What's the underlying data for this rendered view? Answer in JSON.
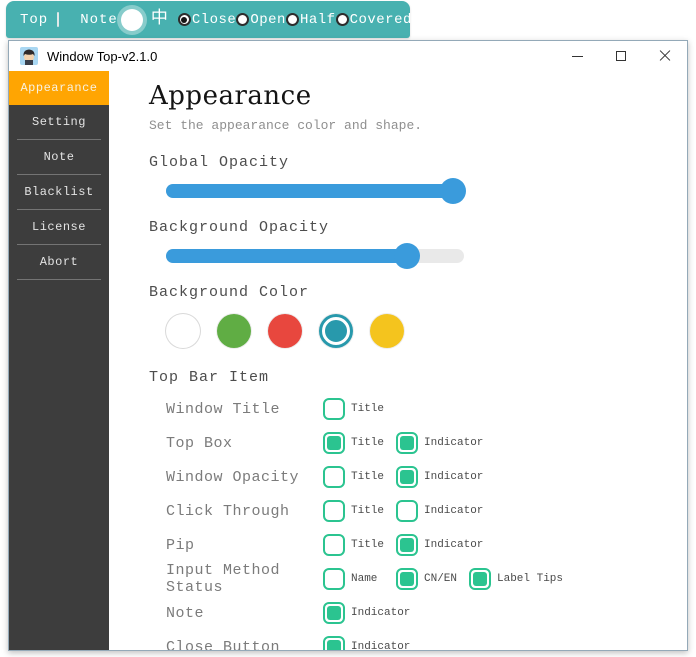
{
  "top_bar": {
    "top_label": "Top",
    "note_label": "Note",
    "ime_char": "中",
    "slider_value": 75,
    "radios": [
      {
        "label": "Close",
        "selected": true
      },
      {
        "label": "Open",
        "selected": false
      },
      {
        "label": "Half",
        "selected": false
      },
      {
        "label": "Covered",
        "selected": false
      }
    ]
  },
  "window": {
    "title": "Window Top-v2.1.0",
    "controls": [
      "minimize",
      "maximize",
      "close"
    ]
  },
  "sidebar": {
    "items": [
      {
        "label": "Appearance",
        "active": true
      },
      {
        "label": "Setting",
        "active": false
      },
      {
        "label": "Note",
        "active": false
      },
      {
        "label": "Blacklist",
        "active": false
      },
      {
        "label": "License",
        "active": false
      },
      {
        "label": "Abort",
        "active": false
      }
    ]
  },
  "content": {
    "heading": "Appearance",
    "subtitle": "Set the appearance color and shape.",
    "global_opacity": {
      "label": "Global Opacity",
      "value_percent": 100
    },
    "background_opacity": {
      "label": "Background Opacity",
      "value_percent": 81
    },
    "background_color": {
      "label": "Background Color",
      "swatches": [
        {
          "name": "white",
          "hex": "#ffffff",
          "selected": false
        },
        {
          "name": "green",
          "hex": "#60ad44",
          "selected": false
        },
        {
          "name": "red",
          "hex": "#e8473e",
          "selected": false
        },
        {
          "name": "teal",
          "hex": "#2899ac",
          "selected": true
        },
        {
          "name": "yellow",
          "hex": "#f4c41e",
          "selected": false
        }
      ]
    },
    "top_bar_item": {
      "label": "Top Bar Item",
      "rows": [
        {
          "label": "Window Title",
          "checks": [
            {
              "label": "Title",
              "checked": false
            }
          ]
        },
        {
          "label": "Top Box",
          "checks": [
            {
              "label": "Title",
              "checked": true
            },
            {
              "label": "Indicator",
              "checked": true
            }
          ]
        },
        {
          "label": "Window Opacity",
          "checks": [
            {
              "label": "Title",
              "checked": false
            },
            {
              "label": "Indicator",
              "checked": true
            }
          ]
        },
        {
          "label": "Click Through",
          "checks": [
            {
              "label": "Title",
              "checked": false
            },
            {
              "label": "Indicator",
              "checked": false
            }
          ]
        },
        {
          "label": "Pip",
          "checks": [
            {
              "label": "Title",
              "checked": false
            },
            {
              "label": "Indicator",
              "checked": true
            }
          ]
        },
        {
          "label": "Input Method Status",
          "checks": [
            {
              "label": "Name",
              "checked": false
            },
            {
              "label": "CN/EN",
              "checked": true
            },
            {
              "label": "Label Tips",
              "checked": true
            }
          ]
        },
        {
          "label": "Note",
          "checks": [
            {
              "label": "Indicator",
              "checked": true
            }
          ]
        },
        {
          "label": "Close Button",
          "checks": [
            {
              "label": "Indicator",
              "checked": true
            }
          ]
        }
      ]
    }
  },
  "colors": {
    "topbar_teal": "#48b1b0",
    "accent_orange": "#ffa502",
    "slider_blue": "#3a9bdc",
    "checkbox_green": "#2bc490",
    "sidebar_dark": "#3d3d3d"
  }
}
